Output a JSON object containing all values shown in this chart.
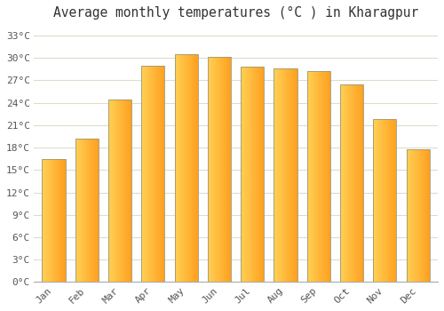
{
  "title": "Average monthly temperatures (°C ) in Kharagpur",
  "months": [
    "Jan",
    "Feb",
    "Mar",
    "Apr",
    "May",
    "Jun",
    "Jul",
    "Aug",
    "Sep",
    "Oct",
    "Nov",
    "Dec"
  ],
  "temperatures": [
    16.5,
    19.2,
    24.4,
    29.0,
    30.5,
    30.1,
    28.8,
    28.6,
    28.2,
    26.5,
    21.8,
    17.8
  ],
  "bar_color_left": "#FFD055",
  "bar_color_right": "#FFA020",
  "bar_edge_color": "#999977",
  "yticks": [
    0,
    3,
    6,
    9,
    12,
    15,
    18,
    21,
    24,
    27,
    30,
    33
  ],
  "ytick_labels": [
    "0°C",
    "3°C",
    "6°C",
    "9°C",
    "12°C",
    "15°C",
    "18°C",
    "21°C",
    "24°C",
    "27°C",
    "30°C",
    "33°C"
  ],
  "ylim": [
    0,
    34.5
  ],
  "background_color": "#ffffff",
  "grid_color": "#ddddcc",
  "title_fontsize": 10.5,
  "tick_fontsize": 8,
  "spine_color": "#aaaaaa"
}
